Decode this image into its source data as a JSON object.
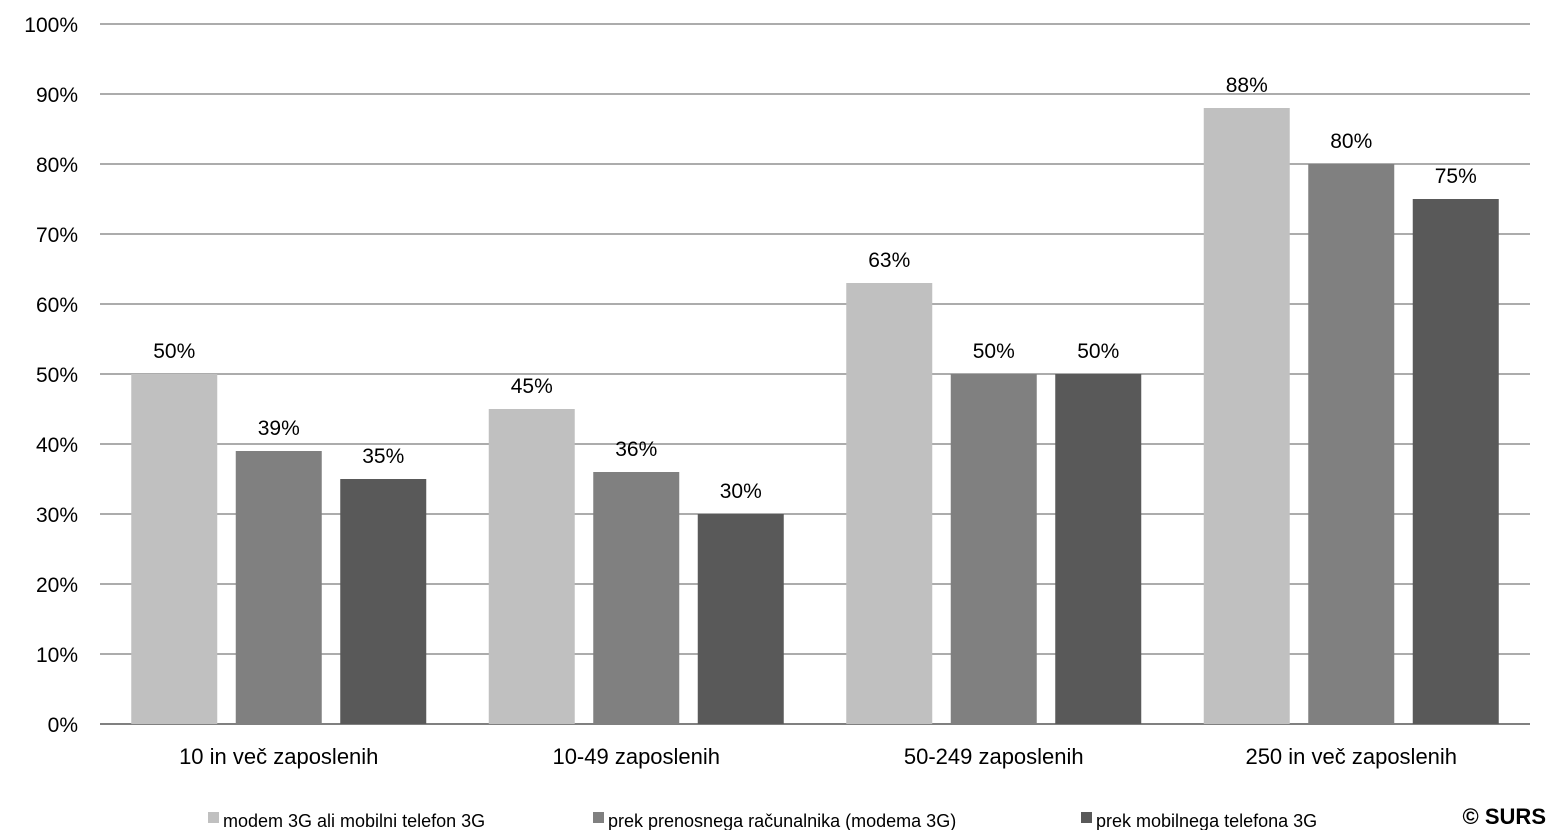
{
  "chart_data": {
    "type": "bar",
    "title": "",
    "xlabel": "",
    "ylabel": "",
    "ylim": [
      0,
      100
    ],
    "y_ticks": [
      0,
      10,
      20,
      30,
      40,
      50,
      60,
      70,
      80,
      90,
      100
    ],
    "y_tick_suffix": "%",
    "grid": true,
    "legend_position": "bottom",
    "categories": [
      "10 in več zaposlenih",
      "10-49 zaposlenih",
      "50-249 zaposlenih",
      "250 in več zaposlenih"
    ],
    "series": [
      {
        "name": "modem 3G ali mobilni telefon 3G",
        "color": "#c0c0c0",
        "values": [
          50,
          45,
          63,
          88
        ]
      },
      {
        "name": "prek prenosnega računalnika (modema 3G)",
        "color": "#808080",
        "values": [
          39,
          36,
          50,
          80
        ]
      },
      {
        "name": "prek mobilnega telefona 3G",
        "color": "#595959",
        "values": [
          35,
          30,
          50,
          75
        ]
      }
    ]
  },
  "copyright": "© SURS"
}
